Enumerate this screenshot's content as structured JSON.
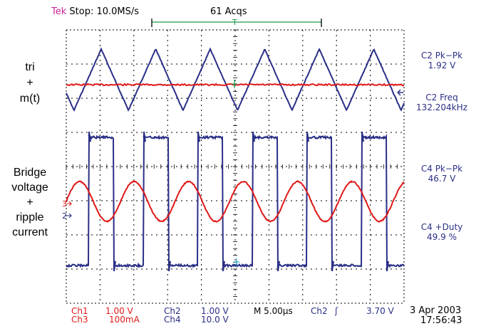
{
  "header": {
    "brand": "Tek",
    "status": "Stop: 10.0MS/s",
    "acqs": "61 Acqs"
  },
  "labels": {
    "top_trace": [
      "tri",
      "+",
      "m(t)"
    ],
    "bottom_trace": [
      "Bridge",
      "voltage",
      "+",
      "ripple",
      "current"
    ]
  },
  "channel_markers": {
    "ch3": "3",
    "ch2": "2"
  },
  "measurements": [
    {
      "name": "C2 Pk−Pk",
      "value": "1.92 V"
    },
    {
      "name": "C2 Freq",
      "value": "132.204kHz"
    },
    {
      "name": "C4 Pk−Pk",
      "value": "46.7 V"
    },
    {
      "name": "C4 +Duty",
      "value": "49.9 %"
    }
  ],
  "footer": {
    "ch1_label": "Ch1",
    "ch1_scale": "1.00 V",
    "ch3_label": "Ch3",
    "ch3_scale": "100mA",
    "ch2_label": "Ch2",
    "ch2_scale": "1.00 V",
    "ch4_label": "Ch4",
    "ch4_scale": "10.0 V",
    "timebase": "M 5.00µs",
    "trigger_source": "Ch2",
    "trigger_slope": "ʃ",
    "trigger_level": "3.70 V",
    "date": "3 Apr 2003",
    "time": "17:56:43"
  },
  "colors": {
    "trace_blue": "#2a2f86",
    "trace_red": "#e01818",
    "record_green": "#1a9a4a",
    "brand_magenta": "#cc2299",
    "cursor_cyan": "#22aacc"
  }
}
